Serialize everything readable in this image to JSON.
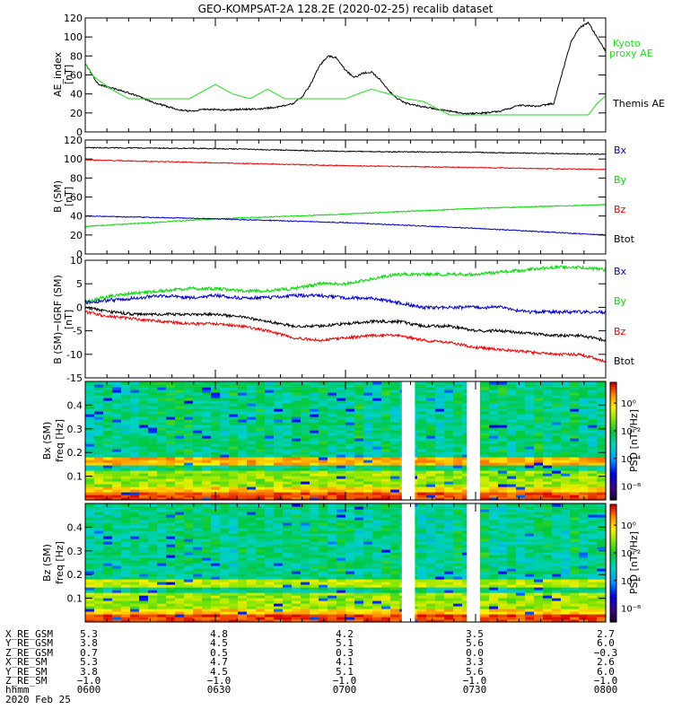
{
  "title": "GEO-KOMPSAT-2A 128.2E (2020-02-25) recalib dataset",
  "xaxis": {
    "start_min": 360,
    "end_min": 480,
    "tick_step": 30,
    "minor_step": 5
  },
  "colors": {
    "black": "#000000",
    "blue": "#0000cc",
    "red": "#ee0000",
    "green": "#00dd00",
    "lightgreen": "#22dd22"
  },
  "gaps": [
    [
      433,
      436
    ],
    [
      448,
      451
    ]
  ],
  "chart_data": [
    {
      "id": "ae",
      "type": "line",
      "ylabel": [
        "AE_index",
        "[nT]"
      ],
      "ylim": [
        0,
        120
      ],
      "yticks": [
        0,
        20,
        40,
        60,
        80,
        100,
        120
      ],
      "series": [
        {
          "name": "Themis AE",
          "color": "black",
          "noise": 0.9,
          "x": [
            360,
            363,
            368,
            372,
            375,
            378,
            381,
            384,
            388,
            392,
            396,
            400,
            404,
            408,
            410,
            412,
            414,
            416,
            418,
            420,
            422,
            424,
            426,
            428,
            430,
            432,
            434,
            436,
            440,
            444,
            448,
            452,
            456,
            460,
            464,
            468,
            472,
            474,
            476,
            478,
            480
          ],
          "y": [
            72,
            50,
            44,
            38,
            32,
            28,
            24,
            22,
            24,
            23,
            24,
            24,
            26,
            30,
            37,
            50,
            70,
            80,
            78,
            65,
            57,
            62,
            63,
            55,
            43,
            35,
            30,
            28,
            25,
            22,
            19,
            20,
            22,
            28,
            27,
            30,
            95,
            110,
            115,
            100,
            85
          ]
        },
        {
          "name": "Kyoto proxy AE",
          "color": "lightgreen",
          "noise": 0,
          "x": [
            360,
            362,
            366,
            370,
            374,
            376,
            380,
            384,
            386,
            390,
            394,
            398,
            402,
            406,
            408,
            412,
            416,
            420,
            424,
            426,
            430,
            434,
            438,
            444,
            450,
            456,
            462,
            468,
            472,
            476,
            478,
            480
          ],
          "y": [
            72,
            58,
            45,
            35,
            35,
            35,
            35,
            35,
            40,
            50,
            40,
            35,
            45,
            35,
            35,
            35,
            35,
            35,
            42,
            45,
            40,
            35,
            32,
            18,
            18,
            18,
            18,
            18,
            18,
            18,
            30,
            38
          ]
        }
      ],
      "legend": [
        {
          "lines": [
            "Kyoto",
            "proxy AE"
          ],
          "color": "lightgreen"
        },
        {
          "lines": [
            "Themis AE"
          ],
          "color": "black"
        }
      ]
    },
    {
      "id": "bsm",
      "type": "line",
      "ylabel": [
        "B (SM)",
        "[nT]"
      ],
      "ylim": [
        0,
        120
      ],
      "yticks": [
        0,
        20,
        40,
        60,
        80,
        100,
        120
      ],
      "series": [
        {
          "name": "Btot",
          "color": "black",
          "noise": 0.5,
          "x": [
            360,
            390,
            420,
            450,
            480
          ],
          "y": [
            112,
            111,
            108,
            107,
            105
          ]
        },
        {
          "name": "Bz",
          "color": "red",
          "noise": 0.5,
          "x": [
            360,
            390,
            420,
            450,
            480
          ],
          "y": [
            99,
            96,
            93,
            91,
            89
          ]
        },
        {
          "name": "By",
          "color": "green",
          "noise": 0.5,
          "x": [
            360,
            390,
            420,
            450,
            480
          ],
          "y": [
            29,
            37,
            42,
            48,
            52
          ]
        },
        {
          "name": "Bx",
          "color": "blue",
          "noise": 0.5,
          "x": [
            360,
            390,
            420,
            450,
            480
          ],
          "y": [
            40,
            37,
            33,
            27,
            20
          ]
        }
      ],
      "legend": [
        {
          "lines": [
            "Bx"
          ],
          "color": "blue"
        },
        {
          "lines": [
            "By"
          ],
          "color": "green"
        },
        {
          "lines": [
            "Bz"
          ],
          "color": "red"
        },
        {
          "lines": [
            "Btot"
          ],
          "color": "black"
        }
      ]
    },
    {
      "id": "digrf",
      "type": "line",
      "ylabel": [
        "B (SM)−IGRF (SM)",
        "[nT]"
      ],
      "ylim": [
        -15,
        10
      ],
      "yticks": [
        -15,
        -10,
        -5,
        0,
        5,
        10
      ],
      "series": [
        {
          "name": "By",
          "color": "green",
          "noise": 0.35,
          "x": [
            360,
            366,
            372,
            378,
            384,
            390,
            396,
            402,
            408,
            414,
            420,
            426,
            432,
            438,
            444,
            450,
            456,
            462,
            468,
            474,
            480
          ],
          "y": [
            1,
            2.5,
            3,
            3.5,
            4,
            4,
            3.5,
            3.5,
            4,
            5,
            5,
            6,
            7,
            7,
            7,
            7,
            7.5,
            8,
            8.5,
            8.5,
            8
          ]
        },
        {
          "name": "Bx",
          "color": "blue",
          "noise": 0.35,
          "x": [
            360,
            366,
            372,
            378,
            384,
            390,
            396,
            402,
            408,
            414,
            420,
            426,
            432,
            438,
            444,
            450,
            456,
            462,
            468,
            474,
            480
          ],
          "y": [
            1,
            1.5,
            2,
            2.5,
            2,
            2.5,
            2,
            2,
            2.5,
            2.5,
            2,
            2,
            1,
            0,
            0,
            0,
            0,
            -1,
            -1,
            -1,
            -1
          ]
        },
        {
          "name": "Btot",
          "color": "black",
          "noise": 0.3,
          "x": [
            360,
            366,
            372,
            378,
            384,
            390,
            396,
            402,
            408,
            414,
            420,
            426,
            432,
            438,
            444,
            450,
            456,
            462,
            468,
            474,
            480
          ],
          "y": [
            0,
            -1,
            -1.5,
            -1.5,
            -1.5,
            -1.5,
            -2,
            -3,
            -4,
            -4,
            -3.5,
            -3,
            -3,
            -4,
            -4,
            -5,
            -5,
            -5.5,
            -6,
            -6,
            -7
          ]
        },
        {
          "name": "Bz",
          "color": "red",
          "noise": 0.3,
          "x": [
            360,
            366,
            372,
            378,
            384,
            390,
            396,
            402,
            408,
            414,
            420,
            426,
            432,
            438,
            444,
            450,
            456,
            462,
            468,
            474,
            480
          ],
          "y": [
            -1,
            -2,
            -2.5,
            -3,
            -3.5,
            -3.5,
            -4,
            -5,
            -6.5,
            -7,
            -6.5,
            -6,
            -6,
            -7,
            -7.5,
            -8.5,
            -9,
            -9.5,
            -10,
            -10,
            -11.5
          ]
        }
      ],
      "legend": [
        {
          "lines": [
            "Bx"
          ],
          "color": "blue"
        },
        {
          "lines": [
            "By"
          ],
          "color": "green"
        },
        {
          "lines": [
            "Bz"
          ],
          "color": "red"
        },
        {
          "lines": [
            "Btot"
          ],
          "color": "black"
        }
      ]
    },
    {
      "id": "spec_bx",
      "type": "heatmap",
      "ylabel": [
        "Bx (SM)",
        "freq [Hz]"
      ],
      "ylim": [
        0,
        0.5
      ],
      "yticks": [
        0.1,
        0.2,
        0.3,
        0.4
      ],
      "ytick_labels": [
        "0.1",
        "0.2",
        "0.3",
        "0.4"
      ],
      "colorbar": {
        "label": "PSD [nT²/Hz]",
        "ticks": [
          {
            "exp": 0,
            "label": "10⁰"
          },
          {
            "exp": -2,
            "label": "10⁻²"
          },
          {
            "exp": -4,
            "label": "10⁻⁴"
          },
          {
            "exp": -6,
            "label": "10⁻⁶"
          }
        ],
        "range": [
          -7,
          1.5
        ]
      },
      "seed": 11,
      "gaps": [
        [
          433,
          436
        ],
        [
          448,
          451
        ]
      ]
    },
    {
      "id": "spec_bz",
      "type": "heatmap",
      "ylabel": [
        "Bz (SM)",
        "freq [Hz]"
      ],
      "ylim": [
        0,
        0.5
      ],
      "yticks": [
        0.1,
        0.2,
        0.3,
        0.4
      ],
      "ytick_labels": [
        "0.1",
        "0.2",
        "0.3",
        "0.4"
      ],
      "colorbar": {
        "label": "PSD [nT²/Hz]",
        "ticks": [
          {
            "exp": 0,
            "label": "10⁰"
          },
          {
            "exp": -2,
            "label": "10⁻²"
          },
          {
            "exp": -4,
            "label": "10⁻⁴"
          },
          {
            "exp": -6,
            "label": "10⁻⁶"
          }
        ],
        "range": [
          -7,
          1.5
        ]
      },
      "seed": 29,
      "gaps": [
        [
          433,
          436
        ],
        [
          448,
          451
        ]
      ]
    }
  ],
  "orbit_table": {
    "row_labels": [
      "X_RE_GSM",
      "Y_RE_GSM",
      "Z_RE_GSM",
      "X_RE_SM",
      "Y_RE_SM",
      "Z_RE_SM",
      "hhmm"
    ],
    "columns": [
      [
        "5.3",
        "3.8",
        "0.7",
        "5.3",
        "3.8",
        "−1.0",
        "0600"
      ],
      [
        "4.8",
        "4.5",
        "0.5",
        "4.7",
        "4.5",
        "−1.0",
        "0630"
      ],
      [
        "4.2",
        "5.1",
        "0.3",
        "4.1",
        "5.1",
        "−1.0",
        "0700"
      ],
      [
        "3.5",
        "5.6",
        "0.0",
        "3.3",
        "5.6",
        "−1.0",
        "0730"
      ],
      [
        "2.7",
        "6.0",
        "−0.3",
        "2.6",
        "6.0",
        "−1.0",
        "0800"
      ]
    ],
    "date": "2020 Feb 25"
  }
}
